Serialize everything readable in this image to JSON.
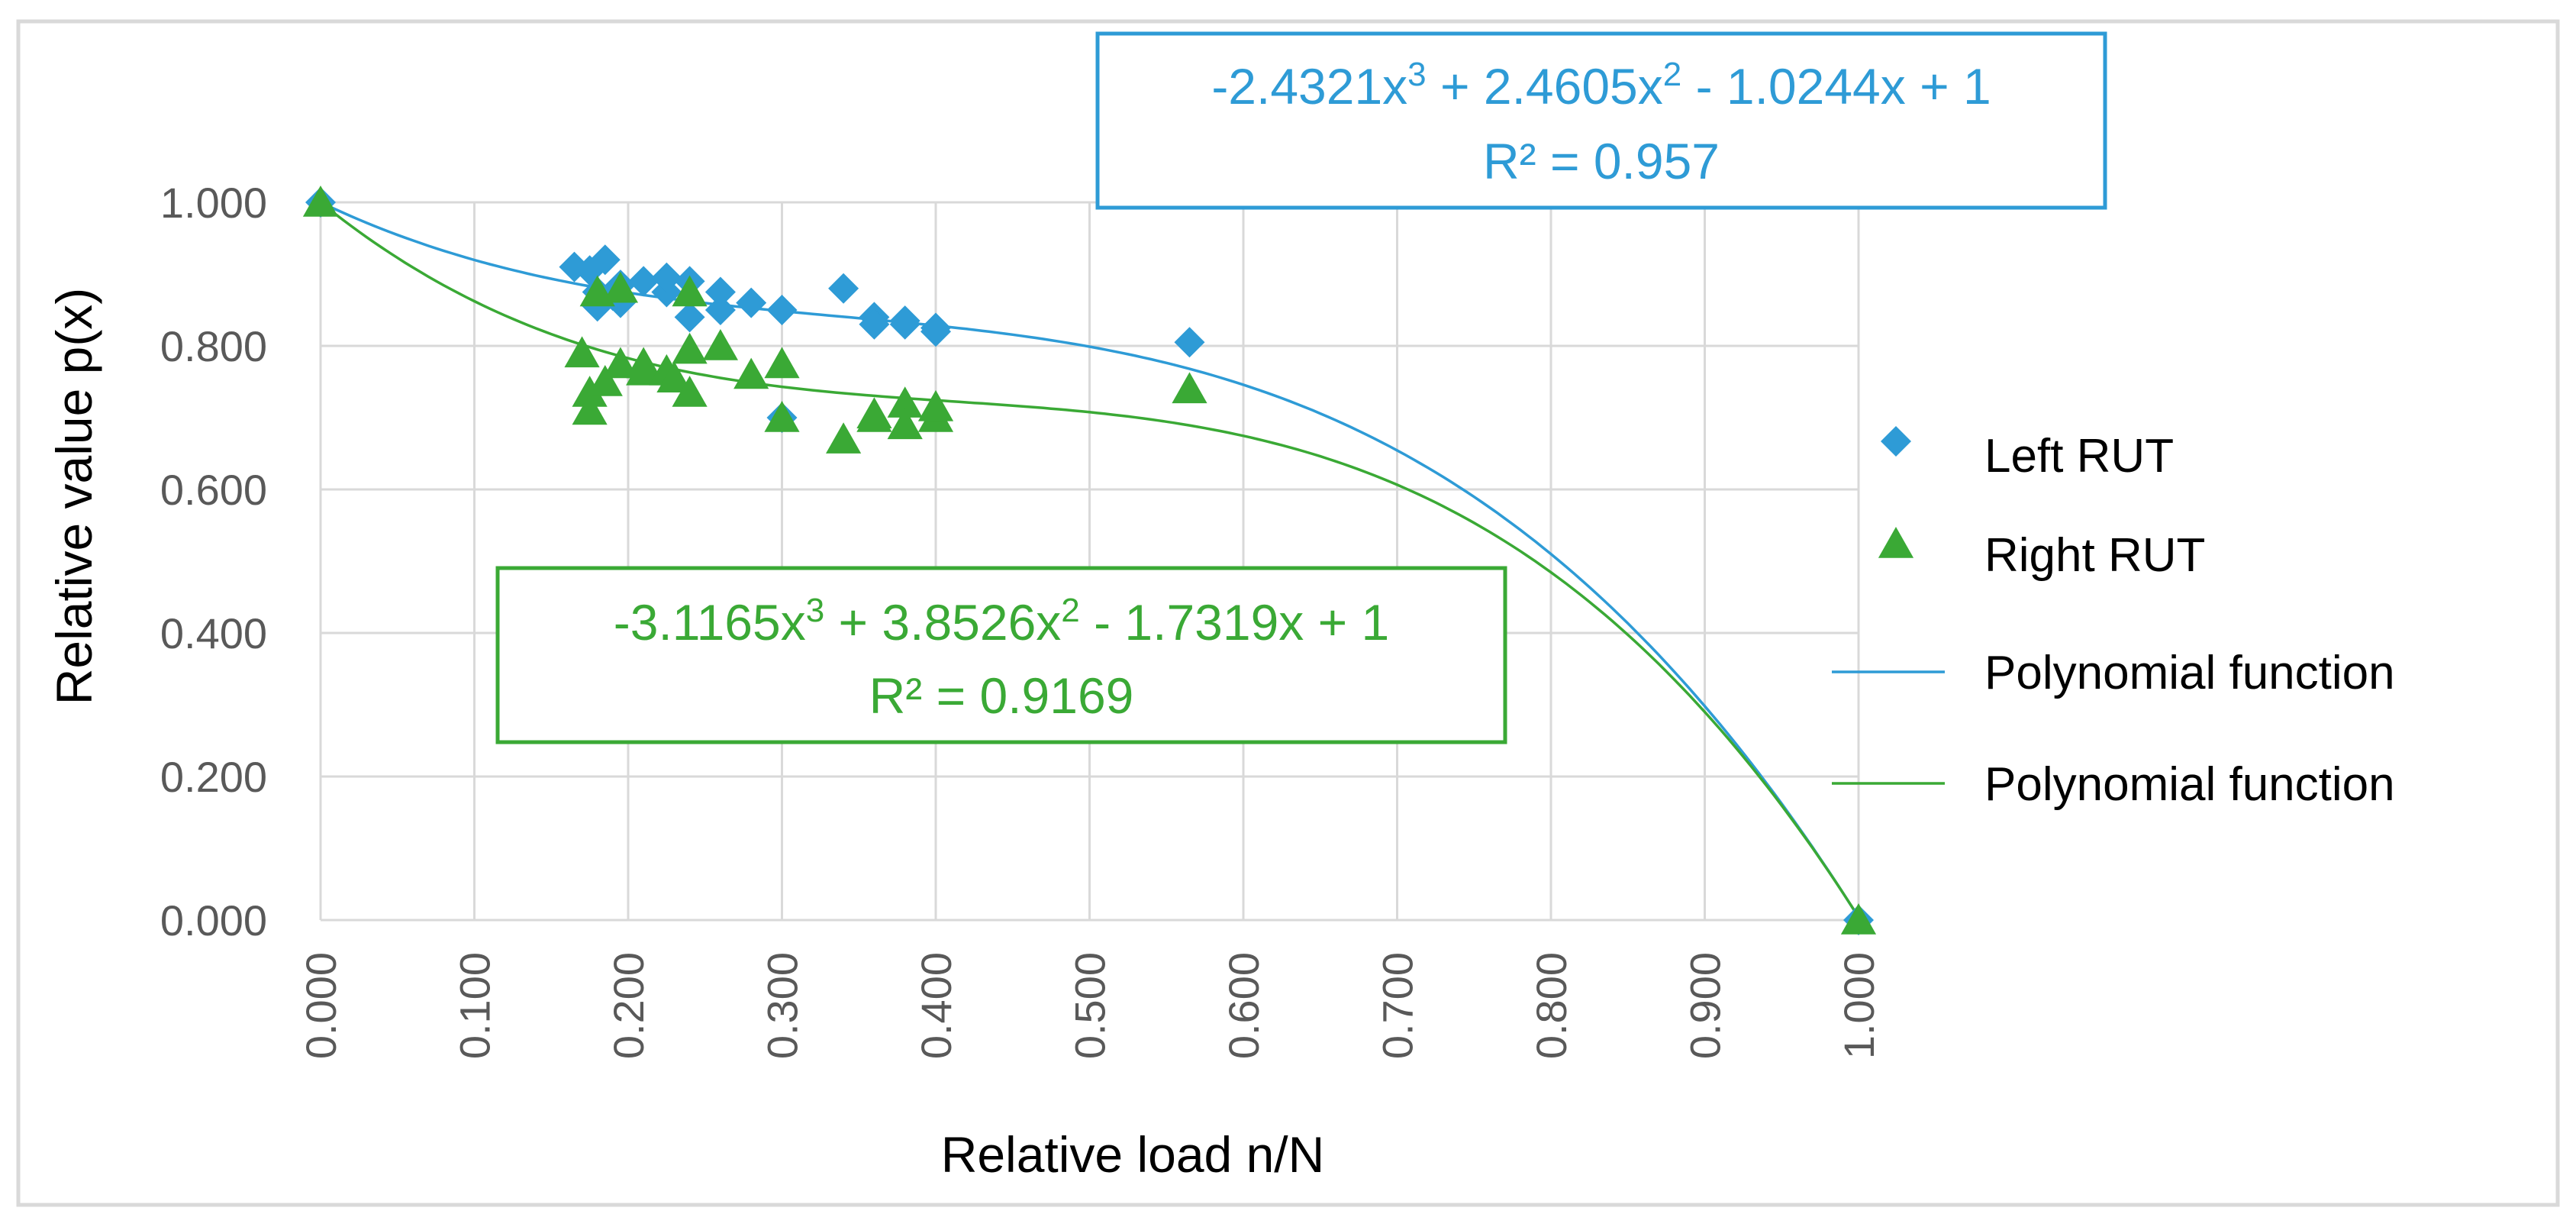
{
  "chart_data": {
    "type": "scatter",
    "title": "",
    "xlabel": "Relative load n/N",
    "ylabel": "Relative value p(x)",
    "xlim": [
      0,
      1
    ],
    "ylim": [
      0,
      1
    ],
    "grid": true,
    "legend_position": "right",
    "x_ticks": [
      "0.000",
      "0.100",
      "0.200",
      "0.300",
      "0.400",
      "0.500",
      "0.600",
      "0.700",
      "0.800",
      "0.900",
      "1.000"
    ],
    "y_ticks": [
      "0.000",
      "0.200",
      "0.400",
      "0.600",
      "0.800",
      "1.000"
    ],
    "series": [
      {
        "name": "Left RUT",
        "marker": "diamond",
        "color": "#2e9bd6",
        "points": [
          [
            0.0,
            1.0
          ],
          [
            0.165,
            0.91
          ],
          [
            0.175,
            0.905
          ],
          [
            0.18,
            0.875
          ],
          [
            0.185,
            0.92
          ],
          [
            0.18,
            0.855
          ],
          [
            0.19,
            0.87
          ],
          [
            0.195,
            0.86
          ],
          [
            0.195,
            0.885
          ],
          [
            0.21,
            0.89
          ],
          [
            0.225,
            0.875
          ],
          [
            0.225,
            0.895
          ],
          [
            0.24,
            0.89
          ],
          [
            0.24,
            0.84
          ],
          [
            0.26,
            0.875
          ],
          [
            0.26,
            0.85
          ],
          [
            0.28,
            0.86
          ],
          [
            0.3,
            0.85
          ],
          [
            0.3,
            0.7
          ],
          [
            0.34,
            0.88
          ],
          [
            0.36,
            0.84
          ],
          [
            0.36,
            0.83
          ],
          [
            0.38,
            0.835
          ],
          [
            0.38,
            0.83
          ],
          [
            0.4,
            0.82
          ],
          [
            0.4,
            0.825
          ],
          [
            0.565,
            0.805
          ],
          [
            1.0,
            0.0
          ]
        ]
      },
      {
        "name": "Right RUT",
        "marker": "triangle",
        "color": "#3aa935",
        "points": [
          [
            0.0,
            1.0
          ],
          [
            0.17,
            0.79
          ],
          [
            0.175,
            0.735
          ],
          [
            0.175,
            0.71
          ],
          [
            0.185,
            0.75
          ],
          [
            0.18,
            0.875
          ],
          [
            0.195,
            0.88
          ],
          [
            0.195,
            0.775
          ],
          [
            0.21,
            0.775
          ],
          [
            0.21,
            0.765
          ],
          [
            0.225,
            0.765
          ],
          [
            0.23,
            0.755
          ],
          [
            0.24,
            0.875
          ],
          [
            0.24,
            0.735
          ],
          [
            0.24,
            0.795
          ],
          [
            0.26,
            0.8
          ],
          [
            0.28,
            0.76
          ],
          [
            0.3,
            0.775
          ],
          [
            0.3,
            0.7
          ],
          [
            0.34,
            0.67
          ],
          [
            0.36,
            0.705
          ],
          [
            0.36,
            0.7
          ],
          [
            0.38,
            0.72
          ],
          [
            0.38,
            0.69
          ],
          [
            0.4,
            0.7
          ],
          [
            0.4,
            0.715
          ],
          [
            0.565,
            0.74
          ],
          [
            1.0,
            0.0
          ]
        ]
      },
      {
        "name": "Polynomial function",
        "type": "line",
        "color": "#2e9bd6",
        "fit_for": "Left RUT",
        "coefficients": [
          -2.4321,
          2.4605,
          -1.0244,
          1
        ],
        "r2": 0.957
      },
      {
        "name": "Polynomial function",
        "type": "line",
        "color": "#3aa935",
        "fit_for": "Right RUT",
        "coefficients": [
          -3.1165,
          3.8526,
          -1.7319,
          1
        ],
        "r2": 0.9169
      }
    ],
    "annotations": [
      {
        "color": "#2e9bd6",
        "equation": {
          "a": "-2.4321x",
          "a_exp": "3",
          "b": " + 2.4605x",
          "b_exp": "2",
          "c": " - 1.0244x + 1"
        },
        "r2_text": "R² = 0.957"
      },
      {
        "color": "#3aa935",
        "equation": {
          "a": "-3.1165x",
          "a_exp": "3",
          "b": " + 3.8526x",
          "b_exp": "2",
          "c": " - 1.7319x + 1"
        },
        "r2_text": "R² = 0.9169"
      }
    ],
    "legend": [
      {
        "label": "Left RUT",
        "symbol": "diamond",
        "color": "#2e9bd6"
      },
      {
        "label": "Right RUT",
        "symbol": "triangle",
        "color": "#3aa935"
      },
      {
        "label": "Polynomial function",
        "symbol": "line",
        "color": "#2e9bd6"
      },
      {
        "label": "Polynomial function",
        "symbol": "line",
        "color": "#3aa935"
      }
    ]
  },
  "colors": {
    "grid": "#d9d9d9",
    "axis_text": "#595959",
    "title_text": "#000000",
    "frame": "#d9d9d9"
  }
}
